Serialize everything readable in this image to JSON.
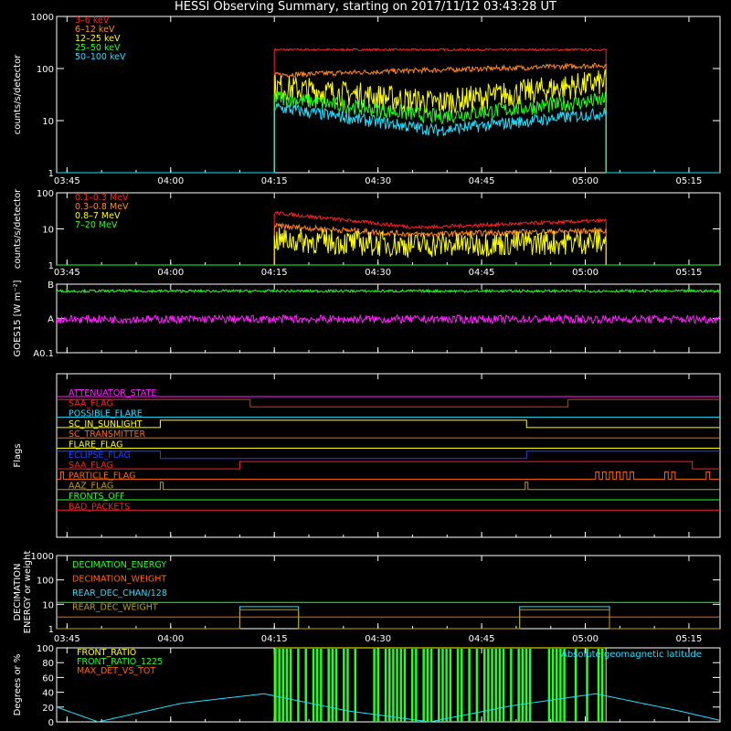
{
  "title": "HESSI Observing Summary, starting on 2017/11/12 03:43:28 UT",
  "colors": {
    "red": "#ff2020",
    "orange": "#ff8a1a",
    "yellow": "#ffff00",
    "green": "#20ff20",
    "cyan": "#20e0ff",
    "magenta": "#ff20ff",
    "blue": "#2040ff",
    "olive": "#c0a000",
    "darkorange": "#ff6600",
    "white": "#ffffff"
  },
  "chart_data": [
    {
      "type": "line",
      "ylabel": "counts/s/detector",
      "yscale": "log",
      "ylim": [
        1,
        1000
      ],
      "yticks": [
        {
          "v": 1,
          "label": "1"
        },
        {
          "v": 10,
          "label": "10"
        },
        {
          "v": 100,
          "label": "100"
        },
        {
          "v": 1000,
          "label": "1000"
        }
      ],
      "xlim_minutes": [
        0,
        96
      ],
      "xticks": [
        "03:45",
        "04:00",
        "04:15",
        "04:30",
        "04:45",
        "05:00",
        "05:15"
      ],
      "legend": [
        "3–6 keV",
        "6–12 keV",
        "12–25 keV",
        "25–50 keV",
        "50–100 keV"
      ],
      "series": [
        {
          "name": "3–6 keV",
          "color": "red",
          "on": [
            31.5,
            79.5
          ],
          "base": 1,
          "x": [
            31.5,
            50,
            79.5
          ],
          "y": [
            230,
            230,
            230
          ],
          "noise": 0.02
        },
        {
          "name": "6–12 keV",
          "color": "orange",
          "on": [
            31.5,
            79.5
          ],
          "base": 1,
          "x": [
            31.5,
            50,
            79.5
          ],
          "y": [
            75,
            90,
            115
          ],
          "noise": 0.05
        },
        {
          "name": "12–25 keV",
          "color": "yellow",
          "on": [
            31.5,
            79.5
          ],
          "base": 1,
          "x": [
            31.5,
            55,
            79.5
          ],
          "y": [
            45,
            22,
            55
          ],
          "noise": 0.25
        },
        {
          "name": "25–50 keV",
          "color": "green",
          "on": [
            31.5,
            79.5
          ],
          "base": 1,
          "x": [
            31.5,
            55,
            79.5
          ],
          "y": [
            28,
            12,
            25
          ],
          "noise": 0.15
        },
        {
          "name": "50–100 keV",
          "color": "cyan",
          "on": [
            31.5,
            79.5
          ],
          "base": 1,
          "x": [
            31.5,
            55,
            79.5
          ],
          "y": [
            18,
            6.5,
            14
          ],
          "noise": 0.12
        }
      ]
    },
    {
      "type": "line",
      "ylabel": "counts/s/detector",
      "yscale": "log",
      "ylim": [
        1,
        100
      ],
      "yticks": [
        {
          "v": 1,
          "label": "1"
        },
        {
          "v": 10,
          "label": "10"
        },
        {
          "v": 100,
          "label": "100"
        }
      ],
      "xlim_minutes": [
        0,
        96
      ],
      "xticks": [
        "03:45",
        "04:00",
        "04:15",
        "04:30",
        "04:45",
        "05:00",
        "05:15"
      ],
      "legend": [
        "0.1–0.3 MeV",
        "0.3–0.8 MeV",
        "0.8–7 MeV",
        "7–20 MeV"
      ],
      "series": [
        {
          "name": "0.1–0.3 MeV",
          "color": "red",
          "on": [
            31.5,
            79.5
          ],
          "base": 1,
          "x": [
            31.5,
            52,
            79.5
          ],
          "y": [
            28,
            11,
            17
          ],
          "noise": 0.05
        },
        {
          "name": "0.3–0.8 MeV",
          "color": "orange",
          "on": [
            31.5,
            79.5
          ],
          "base": 1,
          "x": [
            31.5,
            52,
            79.5
          ],
          "y": [
            12,
            7,
            9
          ],
          "noise": 0.08
        },
        {
          "name": "0.8–7 MeV",
          "color": "yellow",
          "on": [
            31.5,
            79.5
          ],
          "base": 1,
          "x": [
            31.5,
            52,
            79.5
          ],
          "y": [
            5,
            3.5,
            4.5
          ],
          "noise": 0.35
        },
        {
          "name": "7–20 MeV",
          "color": "green",
          "on": [
            0,
            96
          ],
          "base": 1,
          "x": [
            0,
            96
          ],
          "y": [
            1,
            1
          ],
          "noise": 0
        }
      ]
    },
    {
      "type": "line",
      "ylabel": "GOES15 [W m⁻²]",
      "yscale": "log",
      "ylim": [
        1e-09,
        1e-07
      ],
      "yticks": [
        {
          "v": 1e-09,
          "label": "A0.1"
        },
        {
          "v": 1e-08,
          "label": "A"
        },
        {
          "v": 1e-07,
          "label": "B"
        }
      ],
      "xlim_minutes": [
        0,
        96
      ],
      "series": [
        {
          "name": "GOES long",
          "color": "green",
          "x": [
            0,
            96
          ],
          "y": [
            6.3e-08,
            6.3e-08
          ],
          "noise": 0.04
        },
        {
          "name": "GOES short",
          "color": "magenta",
          "x": [
            0,
            96
          ],
          "y": [
            9.5e-09,
            9.5e-09
          ],
          "noise": 0.12
        }
      ]
    },
    {
      "type": "step",
      "ylabel": "Flags",
      "xlim_minutes": [
        0,
        96
      ],
      "flags": [
        {
          "name": "ATTENUATOR_STATE",
          "color": "magenta",
          "steps": [
            [
              0,
              0
            ]
          ]
        },
        {
          "name": "SAA_FLAG",
          "color": "red",
          "steps": [
            [
              0,
              1
            ],
            [
              28,
              0
            ],
            [
              74,
              1
            ]
          ]
        },
        {
          "name": "POSSIBLE_FLARE",
          "color": "cyan",
          "steps": [
            [
              0,
              0
            ]
          ]
        },
        {
          "name": "SC_IN_SUNLIGHT",
          "color": "yellow",
          "steps": [
            [
              0,
              0
            ],
            [
              15,
              1
            ],
            [
              68,
              0
            ]
          ]
        },
        {
          "name": "SC_TRANSMITTER",
          "color": "darkorange",
          "steps": [
            [
              0,
              0
            ]
          ]
        },
        {
          "name": "FLARE_FLAG",
          "color": "yellow",
          "steps": [
            [
              0,
              0
            ]
          ]
        },
        {
          "name": "ECLIPSE_FLAG",
          "color": "blue",
          "steps": [
            [
              0,
              1
            ],
            [
              15,
              0
            ],
            [
              68,
              1
            ]
          ]
        },
        {
          "name": "SAA_FLAG",
          "color": "red",
          "steps": [
            [
              0,
              0
            ],
            [
              26.5,
              1
            ],
            [
              92,
              0
            ]
          ]
        },
        {
          "name": "PARTICLE_FLAG",
          "color": "darkorange",
          "steps": [
            [
              0,
              0
            ],
            [
              0.6,
              1
            ],
            [
              1,
              0
            ],
            [
              77,
              0
            ],
            [
              78,
              1
            ],
            [
              78.5,
              0
            ],
            [
              79,
              1
            ],
            [
              79.5,
              0
            ],
            [
              80,
              1
            ],
            [
              80.5,
              0
            ],
            [
              81,
              1
            ],
            [
              81.5,
              0
            ],
            [
              82,
              1
            ],
            [
              82.5,
              0
            ],
            [
              83,
              1
            ],
            [
              83.5,
              0
            ],
            [
              88,
              1
            ],
            [
              88.5,
              0
            ],
            [
              89,
              1
            ],
            [
              89.5,
              0
            ],
            [
              94,
              1
            ],
            [
              94.5,
              0
            ]
          ]
        },
        {
          "name": "AAZ_FLAG",
          "color": "olive",
          "steps": [
            [
              0,
              0
            ],
            [
              15,
              1
            ],
            [
              15.4,
              0
            ],
            [
              67.8,
              1
            ],
            [
              68.2,
              0
            ]
          ]
        },
        {
          "name": "FRONTS_OFF",
          "color": "green",
          "steps": [
            [
              0,
              0
            ]
          ]
        },
        {
          "name": "BAD_PACKETS",
          "color": "red",
          "steps": [
            [
              0,
              0
            ]
          ]
        }
      ]
    },
    {
      "type": "step",
      "ylabel": "DECIMATION ENERGY or weight",
      "yscale": "log",
      "ylim": [
        1,
        1000
      ],
      "yticks": [
        {
          "v": 1,
          "label": "1"
        },
        {
          "v": 10,
          "label": "10"
        },
        {
          "v": 100,
          "label": "100"
        },
        {
          "v": 1000,
          "label": "1000"
        }
      ],
      "xlim_minutes": [
        0,
        96
      ],
      "xticks": [
        "03:45",
        "04:00",
        "04:15",
        "04:30",
        "04:45",
        "05:00",
        "05:15"
      ],
      "legend": [
        "DECIMATION_ENERGY",
        "DECIMATION_WEIGHT",
        "REAR_DEC_CHAN/128",
        "REAR_DEC_WEIGHT"
      ],
      "series": [
        {
          "name": "DECIMATION_ENERGY",
          "color": "green",
          "x": [
            0,
            96
          ],
          "y": [
            12,
            12
          ]
        },
        {
          "name": "DECIMATION_WEIGHT",
          "color": "darkorange",
          "x": [
            0,
            96
          ],
          "y": [
            3,
            3
          ]
        },
        {
          "name": "REAR_DEC_CHAN/128",
          "color": "cyan",
          "steps": [
            [
              0,
              1
            ],
            [
              26.5,
              8
            ],
            [
              35,
              1
            ],
            [
              67,
              8
            ],
            [
              80,
              1
            ]
          ]
        },
        {
          "name": "REAR_DEC_WEIGHT",
          "color": "olive",
          "steps": [
            [
              0,
              1
            ],
            [
              26.5,
              6
            ],
            [
              35,
              1
            ],
            [
              67,
              6
            ],
            [
              80,
              1
            ]
          ]
        }
      ]
    },
    {
      "type": "line",
      "ylabel": "Degrees or %",
      "ylim": [
        0,
        100
      ],
      "yticks": [
        {
          "v": 0,
          "label": "0"
        },
        {
          "v": 20,
          "label": "20"
        },
        {
          "v": 40,
          "label": "40"
        },
        {
          "v": 60,
          "label": "60"
        },
        {
          "v": 80,
          "label": "80"
        },
        {
          "v": 100,
          "label": "100"
        }
      ],
      "xlim_minutes": [
        0,
        96
      ],
      "legend": [
        "FRONT_RATIO",
        "FRONT_RATIO_1225",
        "MAX_DET_VS_TOT"
      ],
      "annotation": "Absolute geomagnetic latitude",
      "series": [
        {
          "name": "FRONT_RATIO",
          "color": "yellow",
          "on": [
            31.5,
            79.5
          ],
          "y": [
            100,
            100
          ]
        },
        {
          "name": "FRONT_RATIO_1225",
          "color": "green",
          "on": [
            31.5,
            79.5
          ],
          "bars": true
        },
        {
          "name": "MAX_DET_VS_TOT",
          "color": "darkorange",
          "on": [
            0,
            96
          ],
          "y": [
            0,
            0
          ]
        },
        {
          "name": "Absolute geomagnetic latitude",
          "color": "cyan",
          "x": [
            0,
            6,
            18,
            30,
            42,
            54,
            66,
            78,
            90,
            96
          ],
          "y": [
            20,
            0,
            25,
            38,
            15,
            0,
            22,
            38,
            15,
            2
          ]
        }
      ]
    }
  ]
}
